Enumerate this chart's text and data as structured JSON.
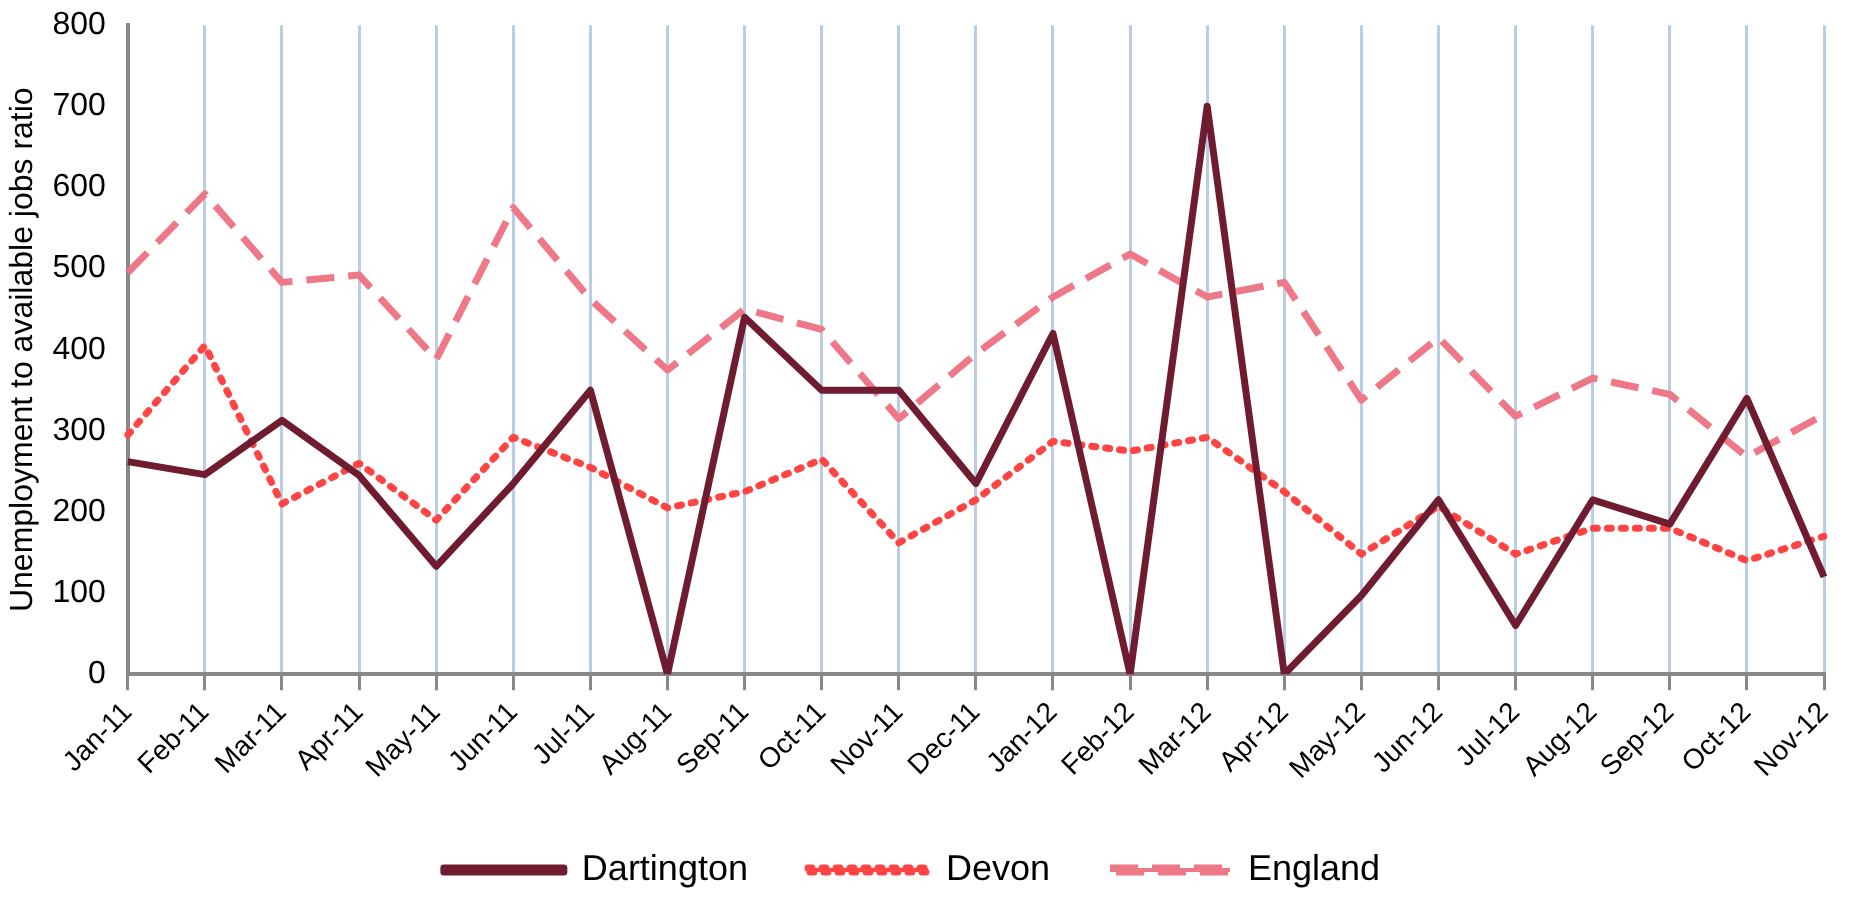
{
  "chart_data": {
    "type": "line",
    "ylabel": "Unemployment to available jobs ratio",
    "categories": [
      "Jan-11",
      "Feb-11",
      "Mar-11",
      "Apr-11",
      "May-11",
      "Jun-11",
      "Jul-11",
      "Aug-11",
      "Sep-11",
      "Oct-11",
      "Nov-11",
      "Dec-11",
      "Jan-12",
      "Feb-12",
      "Mar-12",
      "Apr-12",
      "May-12",
      "Jun-12",
      "Jul-12",
      "Aug-12",
      "Sep-12",
      "Oct-12",
      "Nov-12"
    ],
    "series": [
      {
        "name": "Dartington",
        "color": "#701c30",
        "line_style": "solid",
        "values": [
          262,
          246,
          313,
          245,
          133,
          235,
          350,
          0,
          440,
          350,
          350,
          235,
          420,
          0,
          700,
          0,
          97,
          215,
          60,
          215,
          185,
          340,
          120
        ]
      },
      {
        "name": "Devon",
        "color": "#ff4444",
        "line_style": "dotted",
        "values": [
          295,
          405,
          210,
          260,
          190,
          292,
          255,
          205,
          225,
          265,
          162,
          215,
          287,
          275,
          292,
          225,
          148,
          207,
          148,
          180,
          180,
          140,
          170
        ]
      },
      {
        "name": "England",
        "color": "#ee7788",
        "line_style": "dashed",
        "values": [
          495,
          592,
          483,
          492,
          388,
          575,
          462,
          375,
          450,
          425,
          315,
          395,
          465,
          518,
          465,
          483,
          338,
          415,
          318,
          365,
          345,
          268,
          320
        ]
      }
    ],
    "ylim": [
      0,
      800
    ],
    "yticks": [
      0,
      100,
      200,
      300,
      400,
      500,
      600,
      700,
      800
    ],
    "grid": "x",
    "legend": "bottom",
    "marker": "none"
  }
}
